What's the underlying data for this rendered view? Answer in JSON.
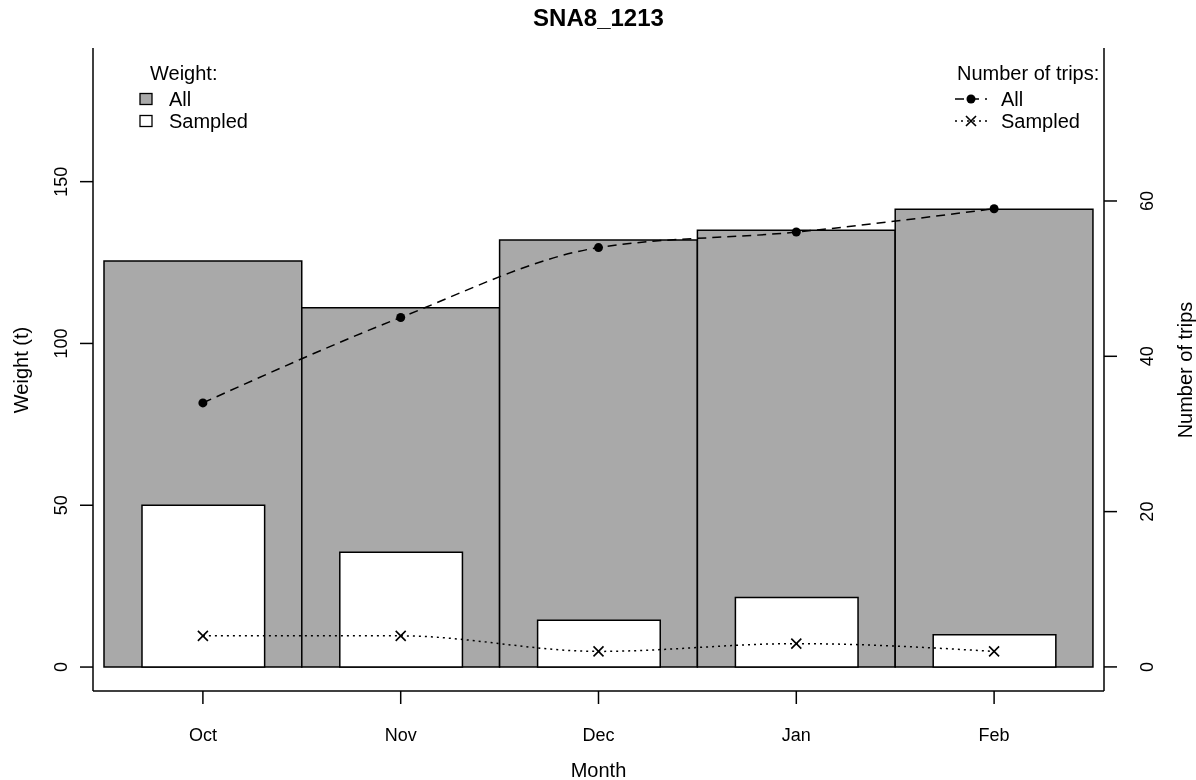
{
  "chart_data": {
    "type": "bar",
    "title": "SNA8_1213",
    "xlabel": "Month",
    "ylabel": "Weight (t)",
    "y2label": "Number of trips",
    "legend_title": [
      "Weight:",
      "Number of trips:"
    ],
    "legend": "top",
    "categories": [
      "Oct",
      "Nov",
      "Dec",
      "Jan",
      "Feb"
    ],
    "series": [
      {
        "name": "All",
        "color": "#a9a9a9",
        "values": [
          125.5,
          111,
          132,
          135,
          141.5
        ]
      },
      {
        "name": "Sampled",
        "color": "#ffffff",
        "values": [
          50,
          35.5,
          14.5,
          21.5,
          10
        ]
      },
      {
        "name": "All",
        "type": "line",
        "axis": "y2",
        "color": "#000000",
        "values": [
          34,
          45,
          54,
          56,
          59
        ],
        "marker": "circle",
        "line_style": "dashed"
      },
      {
        "name": "Sampled",
        "type": "line",
        "axis": "y2",
        "color": "#000000",
        "values": [
          4,
          4,
          2,
          3,
          2
        ],
        "marker": "cross",
        "line_style": "dotted"
      }
    ],
    "ylim": [
      -7.4,
      191.3
    ],
    "yticks": [
      0,
      50,
      100,
      150
    ],
    "y2lim": [
      -3.1,
      79.7
    ],
    "y2ticks": [
      0,
      20,
      40,
      60
    ]
  }
}
